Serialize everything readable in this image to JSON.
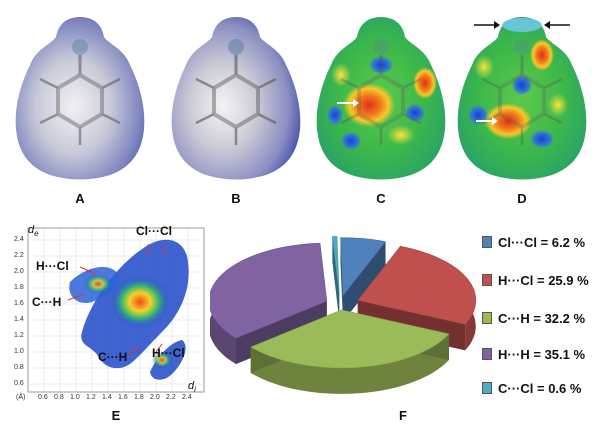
{
  "surfaces": {
    "panels": [
      {
        "id": "A",
        "label": "A"
      },
      {
        "id": "B",
        "label": "B"
      },
      {
        "id": "C",
        "label": "C"
      },
      {
        "id": "D",
        "label": "D"
      }
    ]
  },
  "fingerprint": {
    "panel_label": "E",
    "y_axis_title": "d",
    "y_axis_sub": "e",
    "x_axis_title": "d",
    "x_axis_sub": "i",
    "unit": "(Å)",
    "y_ticks": [
      "2.4",
      "2.2",
      "2.0",
      "1.8",
      "1.6",
      "1.4",
      "1.2",
      "1.0",
      "0.8",
      "0.6"
    ],
    "x_ticks": [
      "0.6",
      "0.8",
      "1.0",
      "1.2",
      "1.4",
      "1.6",
      "1.8",
      "2.0",
      "2.2",
      "2.4"
    ],
    "annotations": {
      "clcl": "Cl···Cl",
      "hcl_left": "H···Cl",
      "ch_left": "C···H",
      "ch_bottom": "C···H",
      "hcl_bottom": "H···Cl"
    }
  },
  "pie": {
    "panel_label": "F",
    "legend": [
      {
        "label": "Cl···Cl = 6.2 %",
        "color": "#4f81bd"
      },
      {
        "label": "H···Cl = 25.9 %",
        "color": "#c0504d"
      },
      {
        "label": "C···H = 32.2 %",
        "color": "#9bbb59"
      },
      {
        "label": "H···H = 35.1 %",
        "color": "#8064a2"
      },
      {
        "label": "C···Cl = 0.6 %",
        "color": "#4bacc6"
      }
    ]
  },
  "chart_data": {
    "type": "pie",
    "categories": [
      "Cl···Cl",
      "H···Cl",
      "C···H",
      "H···H",
      "C···Cl"
    ],
    "values": [
      6.2,
      25.9,
      32.2,
      35.1,
      0.6
    ],
    "colors": [
      "#4f81bd",
      "#c0504d",
      "#9bbb59",
      "#8064a2",
      "#4bacc6"
    ],
    "unit": "%"
  }
}
